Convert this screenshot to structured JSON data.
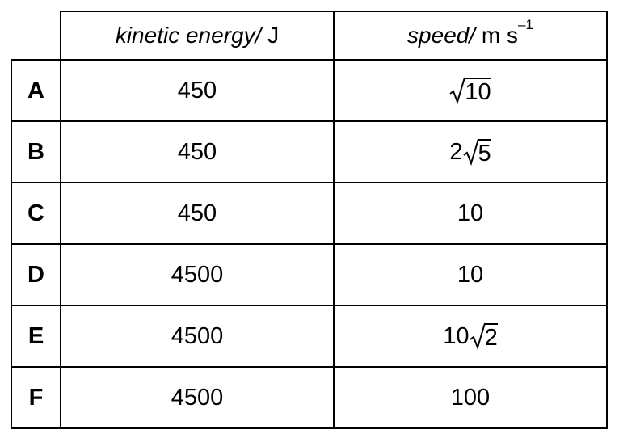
{
  "header": {
    "blank": "",
    "ke_quantity": "kinetic energy",
    "ke_sep": "/",
    "ke_unit": " J",
    "speed_quantity": "speed",
    "speed_sep": "/",
    "speed_unit": " m s",
    "speed_exp": "–1"
  },
  "rows": [
    {
      "label": "A",
      "energy": "450",
      "speed_coef": "",
      "speed_root": "10",
      "speed_plain": ""
    },
    {
      "label": "B",
      "energy": "450",
      "speed_coef": "2",
      "speed_root": "5",
      "speed_plain": ""
    },
    {
      "label": "C",
      "energy": "450",
      "speed_coef": "",
      "speed_root": "",
      "speed_plain": "10"
    },
    {
      "label": "D",
      "energy": "4500",
      "speed_coef": "",
      "speed_root": "",
      "speed_plain": "10"
    },
    {
      "label": "E",
      "energy": "4500",
      "speed_coef": "10",
      "speed_root": "2",
      "speed_plain": ""
    },
    {
      "label": "F",
      "energy": "4500",
      "speed_coef": "",
      "speed_root": "",
      "speed_plain": "100"
    }
  ]
}
